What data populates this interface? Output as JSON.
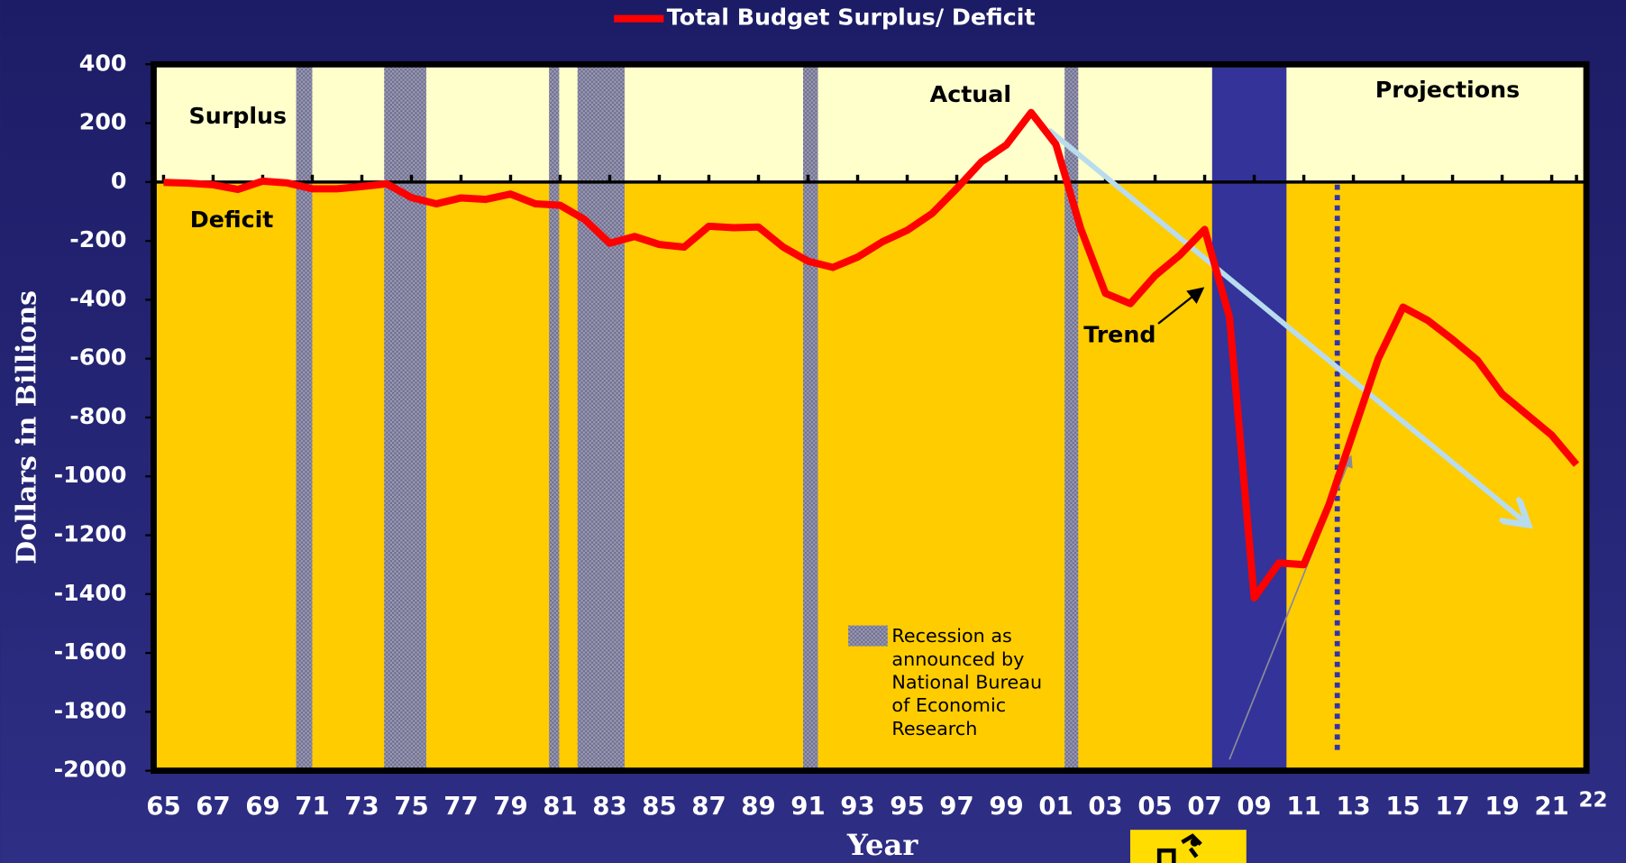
{
  "chart_data": {
    "type": "line",
    "title": "Total Budget Surplus/ Deficit",
    "xlabel": "Year",
    "ylabel": "Dollars in Billions",
    "x": [
      1965,
      1966,
      1967,
      1968,
      1969,
      1970,
      1971,
      1972,
      1973,
      1974,
      1975,
      1976,
      1977,
      1978,
      1979,
      1980,
      1981,
      1982,
      1983,
      1984,
      1985,
      1986,
      1987,
      1988,
      1989,
      1990,
      1991,
      1992,
      1993,
      1994,
      1995,
      1996,
      1997,
      1998,
      1999,
      2000,
      2001,
      2002,
      2003,
      2004,
      2005,
      2006,
      2007,
      2008,
      2009,
      2010,
      2011,
      2012,
      2013,
      2014,
      2015,
      2016,
      2017,
      2018,
      2019,
      2020,
      2021,
      2022
    ],
    "series": [
      {
        "name": "Total Budget Surplus/ Deficit",
        "color": "#ff0000",
        "values": [
          -1,
          -4,
          -9,
          -25,
          3,
          -3,
          -23,
          -23,
          -15,
          -6,
          -53,
          -74,
          -54,
          -59,
          -41,
          -74,
          -79,
          -128,
          -208,
          -185,
          -212,
          -221,
          -150,
          -155,
          -153,
          -221,
          -269,
          -290,
          -255,
          -203,
          -164,
          -107,
          -22,
          69,
          126,
          236,
          128,
          -158,
          -378,
          -413,
          -318,
          -248,
          -161,
          -459,
          -1413,
          -1294,
          -1300,
          -1100,
          -850,
          -600,
          -425,
          -470,
          -535,
          -605,
          -720,
          -790,
          -860,
          -960
        ]
      }
    ],
    "xlim": [
      1964.6,
      2022.4
    ],
    "ylim": [
      -2000,
      400
    ],
    "xticks": [
      {
        "value": 1965,
        "label": "65"
      },
      {
        "value": 1967,
        "label": "67"
      },
      {
        "value": 1969,
        "label": "69"
      },
      {
        "value": 1971,
        "label": "71"
      },
      {
        "value": 1973,
        "label": "73"
      },
      {
        "value": 1975,
        "label": "75"
      },
      {
        "value": 1977,
        "label": "77"
      },
      {
        "value": 1979,
        "label": "79"
      },
      {
        "value": 1981,
        "label": "81"
      },
      {
        "value": 1983,
        "label": "83"
      },
      {
        "value": 1985,
        "label": "85"
      },
      {
        "value": 1987,
        "label": "87"
      },
      {
        "value": 1989,
        "label": "89"
      },
      {
        "value": 1991,
        "label": "91"
      },
      {
        "value": 1993,
        "label": "93"
      },
      {
        "value": 1995,
        "label": "95"
      },
      {
        "value": 1997,
        "label": "97"
      },
      {
        "value": 1999,
        "label": "99"
      },
      {
        "value": 2001,
        "label": "01"
      },
      {
        "value": 2003,
        "label": "03"
      },
      {
        "value": 2005,
        "label": "05"
      },
      {
        "value": 2007,
        "label": "07"
      },
      {
        "value": 2009,
        "label": "09"
      },
      {
        "value": 2011,
        "label": "11"
      },
      {
        "value": 2013,
        "label": "13"
      },
      {
        "value": 2015,
        "label": "15"
      },
      {
        "value": 2017,
        "label": "17"
      },
      {
        "value": 2019,
        "label": "19"
      },
      {
        "value": 2021,
        "label": "21"
      },
      {
        "value": 2022,
        "label": "22"
      }
    ],
    "yticks": [
      400,
      200,
      0,
      -200,
      -400,
      -600,
      -800,
      -1000,
      -1200,
      -1400,
      -1600,
      -1800,
      -2000
    ],
    "annotations": [
      "Surplus",
      "Deficit",
      "Actual",
      "Projections",
      "Trend"
    ],
    "recession_legend": [
      "Recession as",
      "announced by",
      "National Bureau",
      "of Economic",
      "Research"
    ],
    "recessions": [
      [
        1970.35,
        1971.0
      ],
      [
        1973.9,
        1975.6
      ],
      [
        1980.55,
        1980.96
      ],
      [
        1981.7,
        1983.6
      ],
      [
        1990.8,
        1991.4
      ],
      [
        2001.35,
        2001.9
      ]
    ],
    "current_recession": [
      2007.3,
      2010.3
    ],
    "projection_start": 2012.35,
    "trend_arrow": {
      "x": [
        2000.7,
        2019.9
      ],
      "y": [
        178,
        -1154
      ]
    },
    "pointer_arrow": {
      "x": [
        2008.0,
        2012.9
      ],
      "y": [
        -1962,
        -932
      ]
    }
  }
}
